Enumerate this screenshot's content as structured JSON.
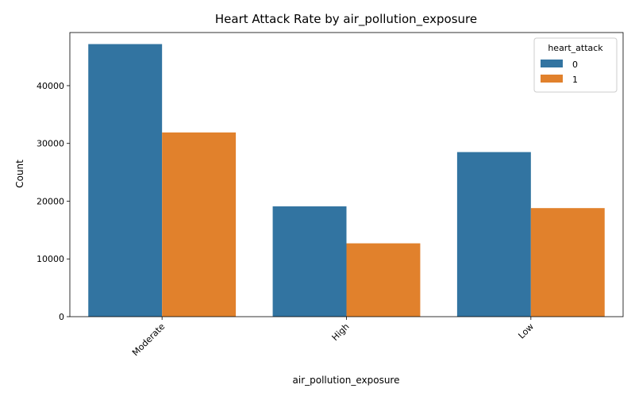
{
  "chart_data": {
    "type": "bar",
    "title": "Heart Attack Rate by air_pollution_exposure",
    "xlabel": "air_pollution_exposure",
    "ylabel": "Count",
    "categories": [
      "Moderate",
      "High",
      "Low"
    ],
    "series": [
      {
        "name": "0",
        "values": [
          47200,
          19100,
          28500
        ],
        "color": "#3274a1"
      },
      {
        "name": "1",
        "values": [
          31900,
          12700,
          18800
        ],
        "color": "#e1812c"
      }
    ],
    "ylim": [
      0,
      49200
    ],
    "yticks": [
      0,
      10000,
      20000,
      30000,
      40000
    ],
    "ytick_labels": [
      "0",
      "10000",
      "20000",
      "30000",
      "40000"
    ],
    "legend": {
      "title": "heart_attack",
      "placement": "top-right"
    },
    "grid": false
  }
}
